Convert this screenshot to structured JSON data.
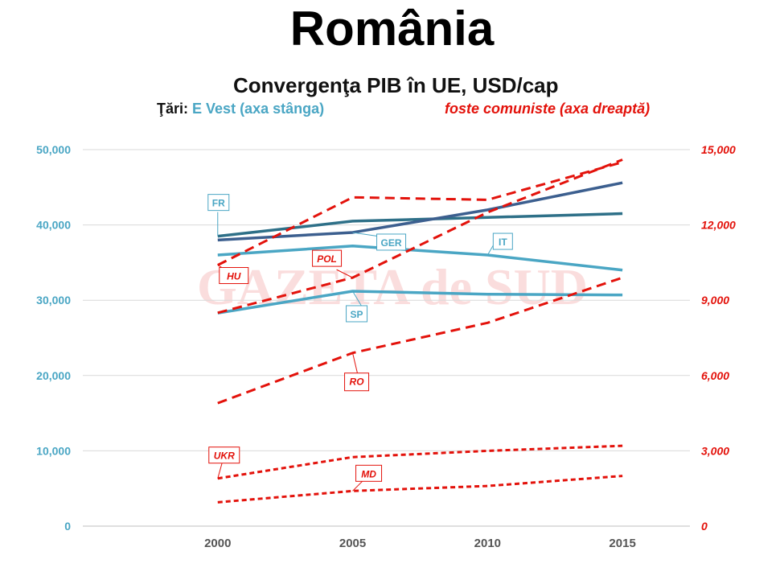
{
  "page_title": "România",
  "chart_data": {
    "type": "line",
    "title": "Convergenţa PIB în UE, USD/cap",
    "legend": {
      "prefix": "Ţări:",
      "west": "E Vest (axa stânga)",
      "east": "foste comuniste (axa dreaptă)"
    },
    "watermark": "GAZETA de SUD",
    "x": [
      2000,
      2005,
      2010,
      2015
    ],
    "xlim": [
      1995,
      2017.5
    ],
    "y_left": {
      "ticks": [
        "0",
        "10,000",
        "20,000",
        "30,000",
        "40,000",
        "50,000"
      ],
      "min": 0,
      "max": 50000
    },
    "y_right": {
      "ticks": [
        "0",
        "3,000",
        "6,000",
        "9,000",
        "12,000",
        "15,000"
      ],
      "min": 0,
      "max": 15000
    },
    "grid": true,
    "series": [
      {
        "name": "FR",
        "axis": "left",
        "style": "solid",
        "color": "#2e7088",
        "values": [
          38500,
          40500,
          41000,
          41500
        ]
      },
      {
        "name": "GER",
        "axis": "left",
        "style": "solid",
        "color": "#3c5f8f",
        "values": [
          38000,
          39000,
          42000,
          45600
        ]
      },
      {
        "name": "IT",
        "axis": "left",
        "style": "solid",
        "color": "#4aa6c4",
        "values": [
          36000,
          37200,
          36000,
          34000
        ]
      },
      {
        "name": "SP",
        "axis": "left",
        "style": "solid",
        "color": "#4aa6c4",
        "values": [
          28300,
          31200,
          30800,
          30700
        ]
      },
      {
        "name": "HU",
        "axis": "right",
        "style": "dashed",
        "color": "#e3120b",
        "values": [
          10400,
          13100,
          13000,
          14500
        ]
      },
      {
        "name": "POL",
        "axis": "right",
        "style": "dashed",
        "color": "#e3120b",
        "values": [
          8500,
          9900,
          12500,
          14600
        ]
      },
      {
        "name": "RO",
        "axis": "right",
        "style": "dashed",
        "color": "#e3120b",
        "values": [
          4900,
          6900,
          8100,
          9900
        ]
      },
      {
        "name": "UKR",
        "axis": "right",
        "style": "dashed",
        "color": "#e3120b",
        "values": [
          1900,
          2750,
          3000,
          3200
        ]
      },
      {
        "name": "MD",
        "axis": "right",
        "style": "dashed",
        "color": "#e3120b",
        "values": [
          950,
          1400,
          1600,
          2000
        ]
      }
    ]
  }
}
